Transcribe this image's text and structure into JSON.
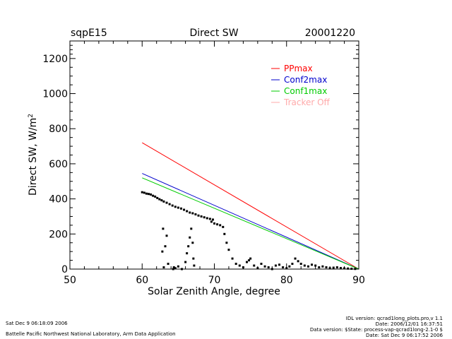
{
  "header": {
    "station": "sqpE15",
    "title": "Direct SW",
    "date": "20001220"
  },
  "footer": {
    "left_line1": "Sat Dec  9 06:18:09 2006",
    "left_line2": "Battelle Pacific Northwest National Laboratory, Arm Data Application",
    "right_line1": "IDL version: qcrad1long_plots.pro,v 1.1",
    "right_line2": "Date: 2006/12/01 16:37:51",
    "right_line3": "Data version: $State: process-vap-qcrad1long-2.1-0 $",
    "right_line4": "Date: Sat Dec  9 06:17:52 2006"
  },
  "chart_data": {
    "type": "scatter",
    "title": "Direct SW",
    "xlabel": "Solar Zenith Angle, degree",
    "ylabel": "Direct SW, W/m²",
    "ylabel_main": "Direct SW, W/m",
    "ylabel_sup": "2",
    "xlim": [
      50,
      90
    ],
    "ylim": [
      0,
      1300
    ],
    "xticks": [
      50,
      60,
      70,
      80,
      90
    ],
    "yticks": [
      0,
      200,
      400,
      600,
      800,
      1000,
      1200
    ],
    "legend_position": "top-right",
    "series": [
      {
        "name": "PPmax",
        "kind": "line",
        "color": "#ff0000",
        "x": [
          60,
          90
        ],
        "y": [
          720,
          0
        ]
      },
      {
        "name": "Conf2max",
        "kind": "line",
        "color": "#0000cc",
        "x": [
          60,
          90
        ],
        "y": [
          545,
          0
        ]
      },
      {
        "name": "Conf1max",
        "kind": "line",
        "color": "#00cc00",
        "x": [
          60,
          90
        ],
        "y": [
          520,
          0
        ]
      },
      {
        "name": "Tracker Off",
        "kind": "legend-only",
        "color": "#ffaaaa",
        "x": [],
        "y": []
      },
      {
        "name": "Direct SW",
        "kind": "points",
        "color": "#000000",
        "x": [
          60,
          60.3,
          60.6,
          60.9,
          61.2,
          61.5,
          61.8,
          62.1,
          62.4,
          62.7,
          63.0,
          63.4,
          63.8,
          64.2,
          64.6,
          65.0,
          65.4,
          65.8,
          66.2,
          66.6,
          67.0,
          67.4,
          67.8,
          68.2,
          68.6,
          69.0,
          69.4,
          69.8,
          62.8,
          62.9,
          63.0,
          63.2,
          63.4,
          63.6,
          64.3,
          64.4,
          64.6,
          65.0,
          65.5,
          66.0,
          66.2,
          66.4,
          66.6,
          66.8,
          67.0,
          67.1,
          67.2,
          69.6,
          70.0,
          70.4,
          70.8,
          71.2,
          71.4,
          71.7,
          72.0,
          72.5,
          73.0,
          73.5,
          74.0,
          74.5,
          74.8,
          75.0,
          75.5,
          76.0,
          76.5,
          77.0,
          77.5,
          78.0,
          78.5,
          79.0,
          79.5,
          80.0,
          80.4,
          80.8,
          81.2,
          81.6,
          82.0,
          82.5,
          83.0,
          83.5,
          84.0,
          84.5,
          85.0,
          85.5,
          86.0,
          86.5,
          87.0,
          87.5,
          88.0,
          88.5,
          89.0,
          89.5
        ],
        "y": [
          438,
          435,
          430,
          428,
          425,
          418,
          413,
          405,
          398,
          392,
          385,
          378,
          370,
          362,
          355,
          350,
          345,
          338,
          330,
          322,
          318,
          312,
          305,
          300,
          295,
          290,
          286,
          282,
          100,
          230,
          10,
          130,
          190,
          30,
          0,
          10,
          5,
          15,
          0,
          40,
          90,
          130,
          180,
          230,
          150,
          60,
          20,
          270,
          260,
          255,
          250,
          240,
          200,
          150,
          110,
          60,
          30,
          20,
          10,
          40,
          50,
          60,
          20,
          5,
          30,
          15,
          10,
          0,
          20,
          25,
          10,
          5,
          15,
          30,
          60,
          45,
          30,
          20,
          15,
          25,
          20,
          10,
          15,
          10,
          5,
          8,
          10,
          6,
          4,
          3,
          2,
          1
        ]
      }
    ]
  }
}
